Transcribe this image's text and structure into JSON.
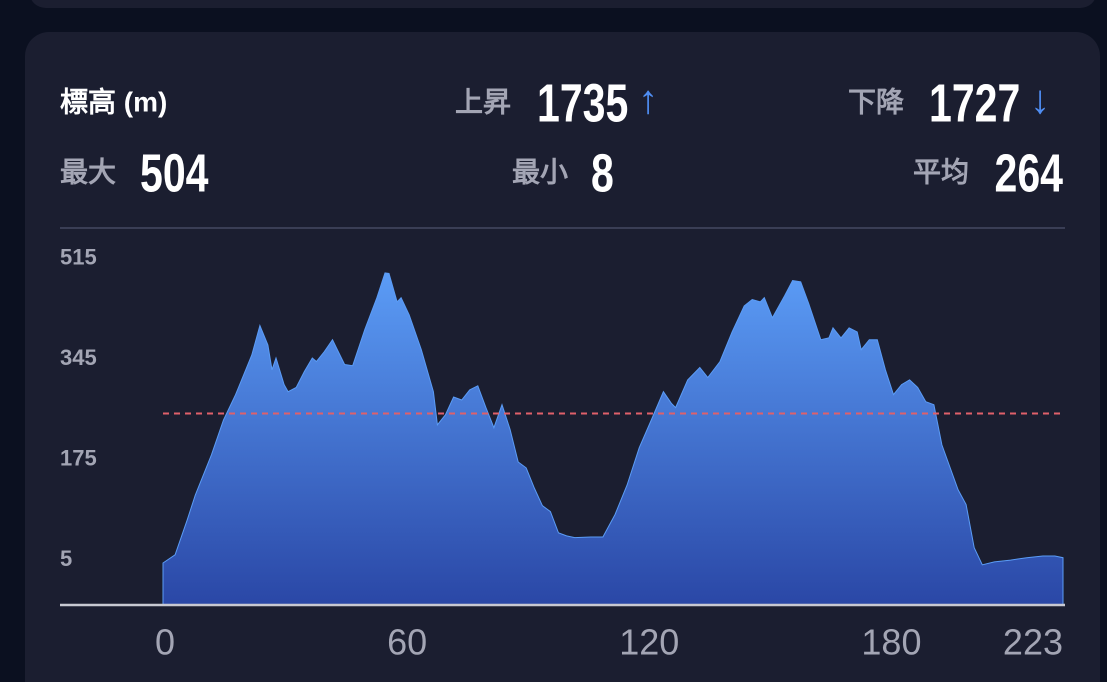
{
  "header": {
    "title": "標高 (m)"
  },
  "stats": {
    "ascent": {
      "label": "上昇",
      "value": 1735,
      "arrow": "↑"
    },
    "descent": {
      "label": "下降",
      "value": 1727,
      "arrow": "↓"
    },
    "max": {
      "label": "最大",
      "value": 504
    },
    "min": {
      "label": "最小",
      "value": 8
    },
    "average": {
      "label": "平均",
      "value": 264
    }
  },
  "chart_data": {
    "type": "area",
    "color": "#5b9cf6",
    "x": [
      0,
      3,
      6,
      8,
      12,
      15,
      18,
      22,
      24,
      26,
      27,
      28,
      30,
      31,
      33,
      35,
      37,
      38,
      40,
      42,
      43,
      45,
      47,
      50,
      53,
      55,
      56,
      58,
      59,
      61,
      64,
      67,
      68,
      70,
      72,
      74,
      76,
      78,
      80,
      82,
      84,
      86,
      88,
      90,
      92,
      94,
      96,
      98,
      100,
      102,
      106,
      109,
      112,
      115,
      118,
      121,
      124,
      126,
      127,
      130,
      133,
      135,
      138,
      141,
      144,
      146,
      148,
      149,
      151,
      154,
      156,
      158,
      160,
      163,
      165,
      166,
      168,
      170,
      172,
      173,
      175,
      177,
      179,
      181,
      183,
      185,
      187,
      189,
      191,
      193,
      197,
      199,
      201,
      203,
      206,
      210,
      214,
      218,
      221,
      223
    ],
    "values": [
      11,
      25,
      84,
      126,
      194,
      253,
      296,
      363,
      413,
      380,
      338,
      358,
      313,
      301,
      308,
      335,
      358,
      352,
      369,
      389,
      375,
      347,
      345,
      406,
      460,
      502,
      501,
      453,
      460,
      431,
      372,
      301,
      245,
      262,
      292,
      287,
      304,
      311,
      274,
      240,
      279,
      237,
      182,
      172,
      138,
      108,
      98,
      62,
      57,
      54,
      55,
      55,
      93,
      143,
      206,
      253,
      301,
      281,
      274,
      321,
      342,
      325,
      352,
      402,
      446,
      457,
      453,
      460,
      426,
      463,
      489,
      487,
      450,
      389,
      392,
      409,
      392,
      409,
      402,
      372,
      389,
      389,
      338,
      296,
      313,
      321,
      308,
      284,
      279,
      211,
      135,
      110,
      37,
      8,
      13,
      16,
      20,
      23,
      23,
      20
    ],
    "xlim": [
      0,
      223
    ],
    "xticks": [
      0,
      60,
      120,
      180,
      223
    ],
    "ylim": [
      -60,
      578
    ],
    "yticks": [
      5,
      175,
      345,
      515
    ]
  }
}
